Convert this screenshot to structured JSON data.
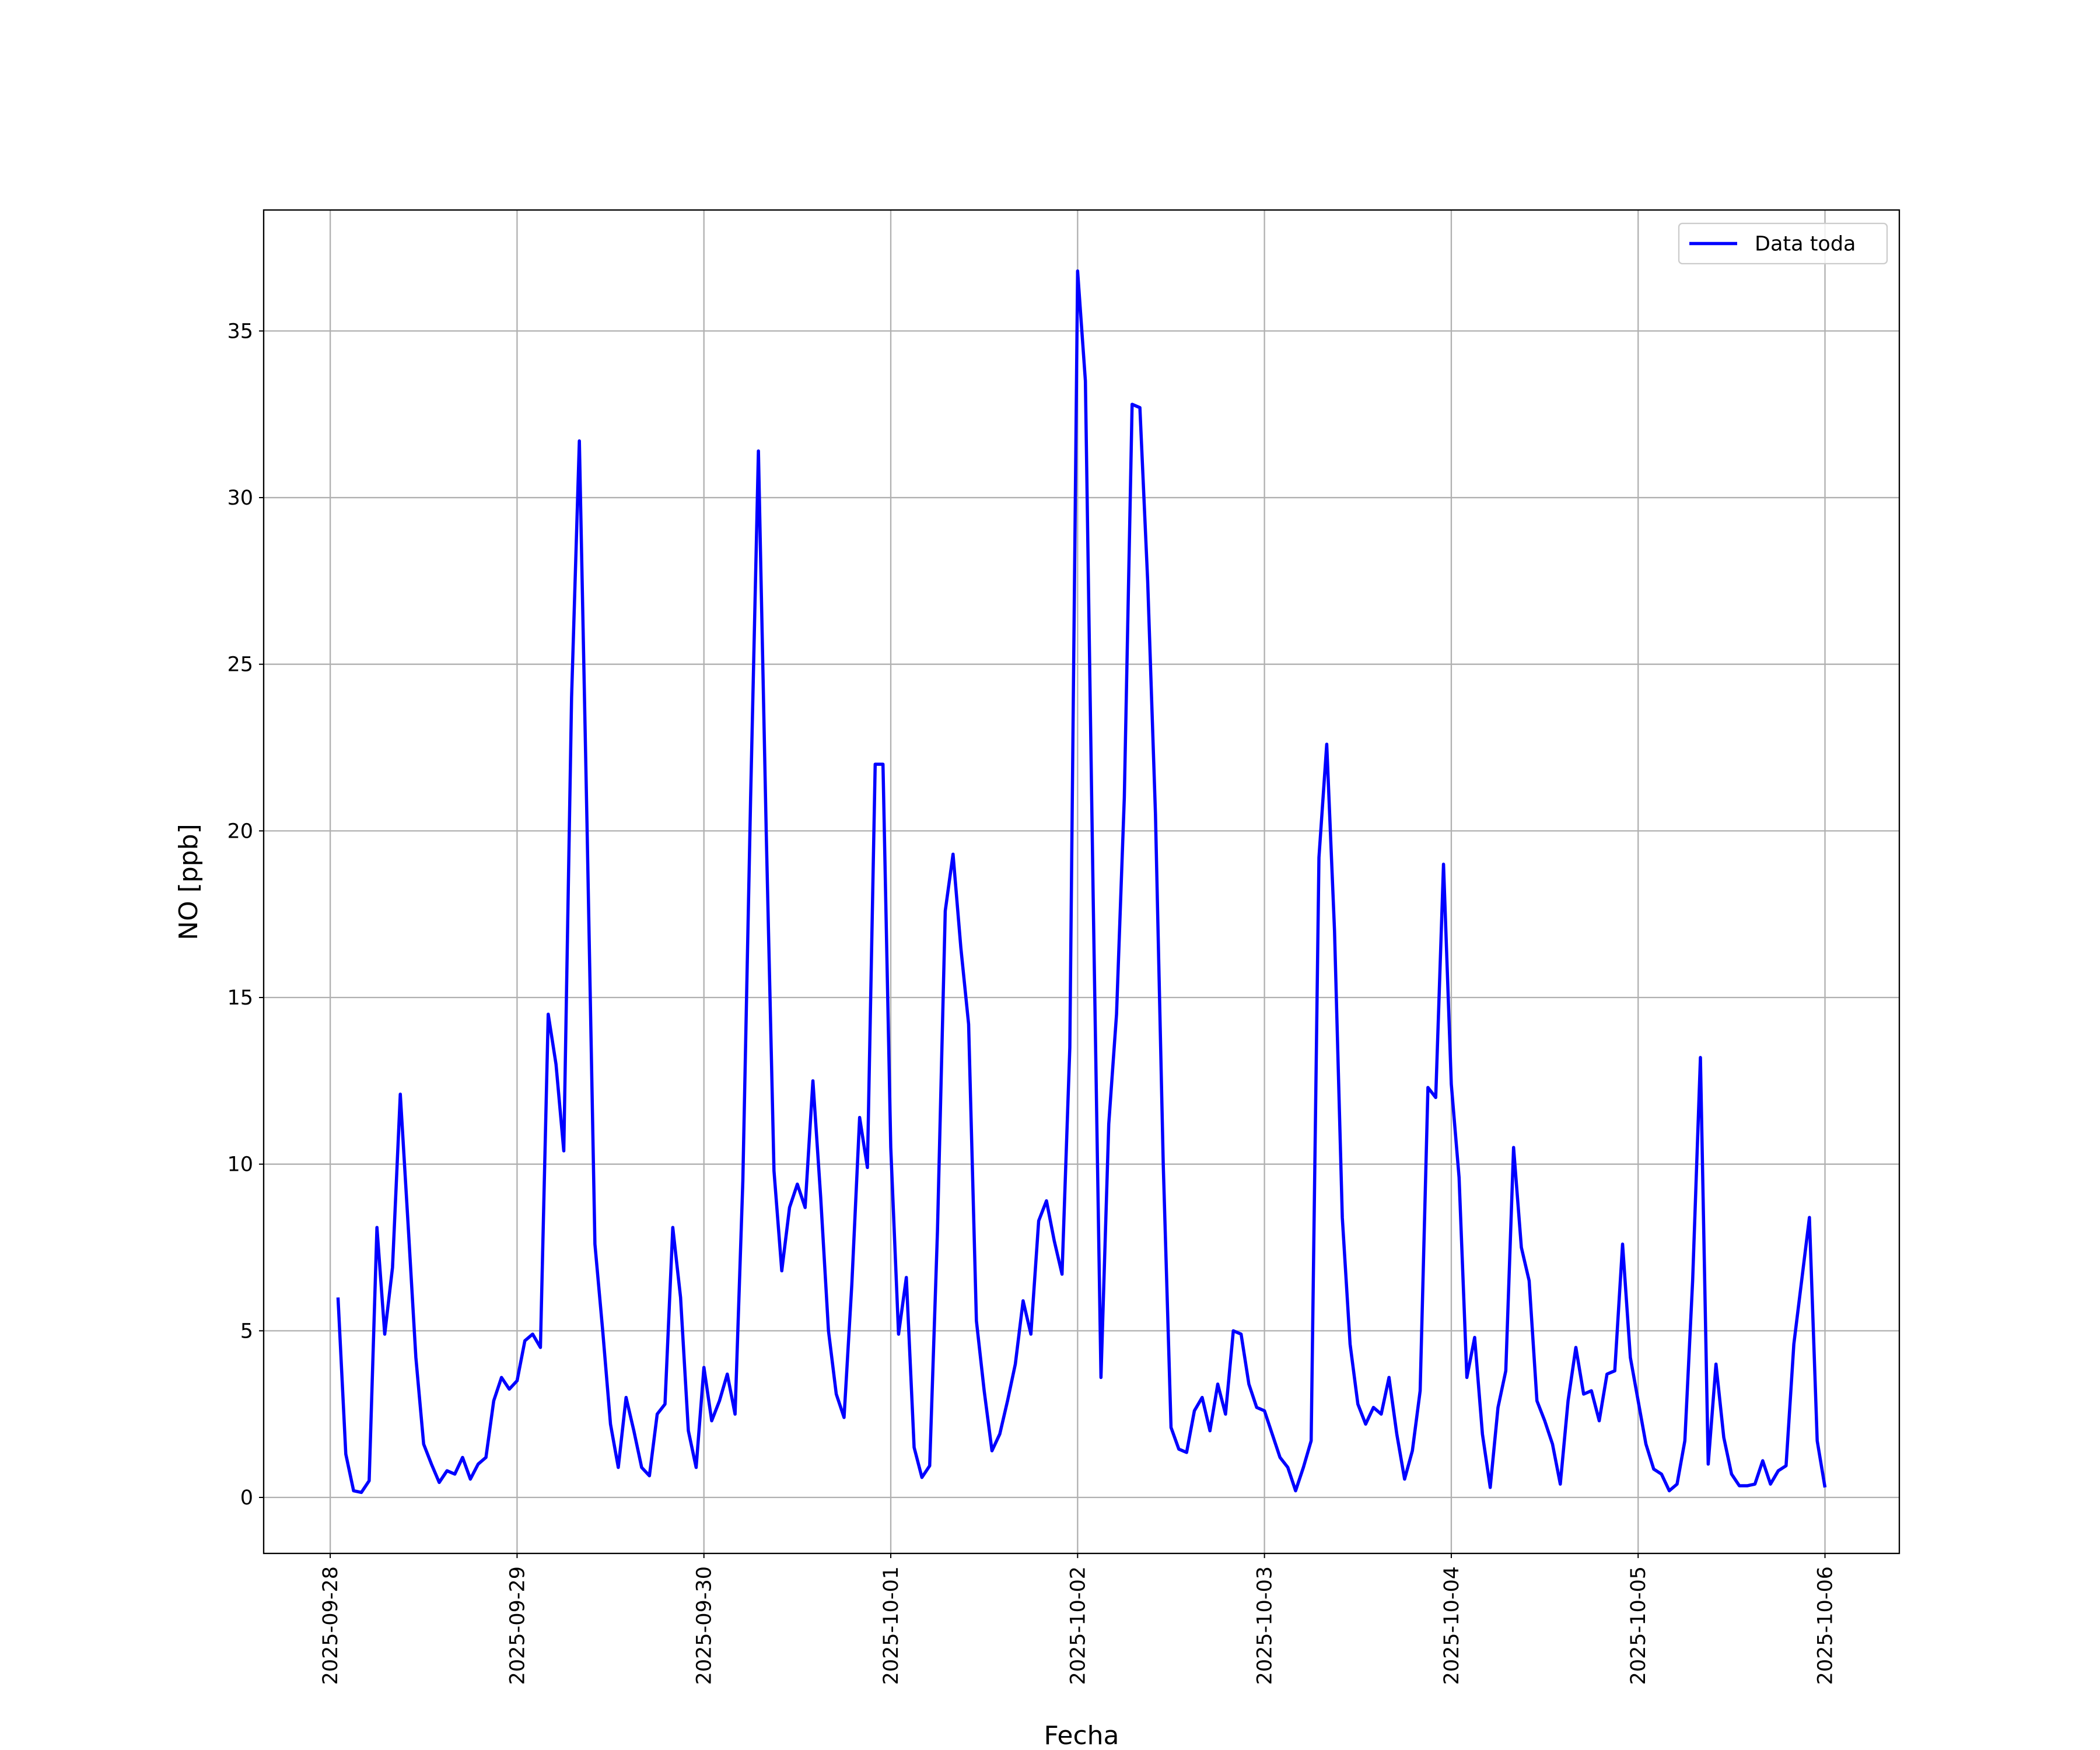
{
  "chart_data": {
    "type": "line",
    "xlabel": "Fecha",
    "ylabel": "NO [ppb]",
    "x": [
      "2025-09-28 01:00",
      "2025-09-28 02:00",
      "2025-09-28 03:00",
      "2025-09-28 04:00",
      "2025-09-28 05:00",
      "2025-09-28 06:00",
      "2025-09-28 07:00",
      "2025-09-28 08:00",
      "2025-09-28 09:00",
      "2025-09-28 10:00",
      "2025-09-28 11:00",
      "2025-09-28 12:00",
      "2025-09-28 13:00",
      "2025-09-28 14:00",
      "2025-09-28 15:00",
      "2025-09-28 16:00",
      "2025-09-28 17:00",
      "2025-09-28 18:00",
      "2025-09-28 19:00",
      "2025-09-28 20:00",
      "2025-09-28 21:00",
      "2025-09-28 22:00",
      "2025-09-28 23:00",
      "2025-09-29 00:00",
      "2025-09-29 01:00",
      "2025-09-29 02:00",
      "2025-09-29 03:00",
      "2025-09-29 04:00",
      "2025-09-29 05:00",
      "2025-09-29 06:00",
      "2025-09-29 07:00",
      "2025-09-29 08:00",
      "2025-09-29 09:00",
      "2025-09-29 10:00",
      "2025-09-29 11:00",
      "2025-09-29 12:00",
      "2025-09-29 13:00",
      "2025-09-29 14:00",
      "2025-09-29 15:00",
      "2025-09-29 16:00",
      "2025-09-29 17:00",
      "2025-09-29 18:00",
      "2025-09-29 19:00",
      "2025-09-29 20:00",
      "2025-09-29 21:00",
      "2025-09-29 22:00",
      "2025-09-29 23:00",
      "2025-09-30 00:00",
      "2025-09-30 01:00",
      "2025-09-30 02:00",
      "2025-09-30 03:00",
      "2025-09-30 04:00",
      "2025-09-30 05:00",
      "2025-09-30 06:00",
      "2025-09-30 07:00",
      "2025-09-30 08:00",
      "2025-09-30 09:00",
      "2025-09-30 10:00",
      "2025-09-30 11:00",
      "2025-09-30 12:00",
      "2025-09-30 13:00",
      "2025-09-30 14:00",
      "2025-09-30 15:00",
      "2025-09-30 16:00",
      "2025-09-30 17:00",
      "2025-09-30 18:00",
      "2025-09-30 19:00",
      "2025-09-30 20:00",
      "2025-09-30 21:00",
      "2025-09-30 22:00",
      "2025-09-30 23:00",
      "2025-10-01 00:00",
      "2025-10-01 01:00",
      "2025-10-01 02:00",
      "2025-10-01 03:00",
      "2025-10-01 04:00",
      "2025-10-01 05:00",
      "2025-10-01 06:00",
      "2025-10-01 07:00",
      "2025-10-01 08:00",
      "2025-10-01 09:00",
      "2025-10-01 10:00",
      "2025-10-01 11:00",
      "2025-10-01 12:00",
      "2025-10-01 13:00",
      "2025-10-01 14:00",
      "2025-10-01 15:00",
      "2025-10-01 16:00",
      "2025-10-01 17:00",
      "2025-10-01 18:00",
      "2025-10-01 19:00",
      "2025-10-01 20:00",
      "2025-10-01 21:00",
      "2025-10-01 22:00",
      "2025-10-01 23:00",
      "2025-10-02 00:00",
      "2025-10-02 01:00",
      "2025-10-02 02:00",
      "2025-10-02 03:00",
      "2025-10-02 04:00",
      "2025-10-02 05:00",
      "2025-10-02 06:00",
      "2025-10-02 07:00",
      "2025-10-02 08:00",
      "2025-10-02 09:00",
      "2025-10-02 10:00",
      "2025-10-02 11:00",
      "2025-10-02 12:00",
      "2025-10-02 13:00",
      "2025-10-02 14:00",
      "2025-10-02 15:00",
      "2025-10-02 16:00",
      "2025-10-02 17:00",
      "2025-10-02 18:00",
      "2025-10-02 19:00",
      "2025-10-02 20:00",
      "2025-10-02 21:00",
      "2025-10-02 22:00",
      "2025-10-02 23:00",
      "2025-10-03 00:00",
      "2025-10-03 01:00",
      "2025-10-03 02:00",
      "2025-10-03 03:00",
      "2025-10-03 04:00",
      "2025-10-03 05:00",
      "2025-10-03 06:00",
      "2025-10-03 07:00",
      "2025-10-03 08:00",
      "2025-10-03 09:00",
      "2025-10-03 10:00",
      "2025-10-03 11:00",
      "2025-10-03 12:00",
      "2025-10-03 13:00",
      "2025-10-03 14:00",
      "2025-10-03 15:00",
      "2025-10-03 16:00",
      "2025-10-03 17:00",
      "2025-10-03 18:00",
      "2025-10-03 19:00",
      "2025-10-03 20:00",
      "2025-10-03 21:00",
      "2025-10-03 22:00",
      "2025-10-03 23:00",
      "2025-10-04 00:00",
      "2025-10-04 01:00",
      "2025-10-04 02:00",
      "2025-10-04 03:00",
      "2025-10-04 04:00",
      "2025-10-04 05:00",
      "2025-10-04 06:00",
      "2025-10-04 07:00",
      "2025-10-04 08:00",
      "2025-10-04 09:00",
      "2025-10-04 10:00",
      "2025-10-04 11:00",
      "2025-10-04 12:00",
      "2025-10-04 13:00",
      "2025-10-04 14:00",
      "2025-10-04 15:00",
      "2025-10-04 16:00",
      "2025-10-04 17:00",
      "2025-10-04 18:00",
      "2025-10-04 19:00",
      "2025-10-04 20:00",
      "2025-10-04 21:00",
      "2025-10-04 22:00",
      "2025-10-04 23:00",
      "2025-10-05 00:00",
      "2025-10-05 01:00",
      "2025-10-05 02:00",
      "2025-10-05 03:00",
      "2025-10-05 04:00",
      "2025-10-05 05:00",
      "2025-10-05 06:00",
      "2025-10-05 07:00",
      "2025-10-05 08:00",
      "2025-10-05 09:00",
      "2025-10-05 10:00",
      "2025-10-05 11:00",
      "2025-10-05 12:00",
      "2025-10-05 13:00",
      "2025-10-05 14:00",
      "2025-10-05 15:00",
      "2025-10-05 16:00",
      "2025-10-05 17:00",
      "2025-10-05 18:00",
      "2025-10-05 19:00",
      "2025-10-05 20:00",
      "2025-10-05 21:00",
      "2025-10-05 22:00",
      "2025-10-05 23:00",
      "2025-10-06 00:00"
    ],
    "series": [
      {
        "name": "Data toda",
        "color": "#0000ff",
        "values": [
          6.0,
          1.3,
          0.2,
          0.15,
          0.5,
          8.1,
          4.9,
          6.9,
          12.1,
          8.2,
          4.2,
          1.6,
          1.0,
          0.45,
          0.8,
          0.7,
          1.2,
          0.55,
          1.0,
          1.2,
          2.9,
          3.6,
          3.25,
          3.5,
          4.7,
          4.9,
          4.5,
          14.5,
          13.0,
          10.4,
          24.0,
          31.7,
          20.0,
          7.6,
          5.0,
          2.2,
          0.9,
          3.0,
          2.0,
          0.9,
          0.65,
          2.5,
          2.8,
          8.1,
          6.0,
          2.0,
          0.9,
          3.9,
          2.3,
          2.9,
          3.7,
          2.5,
          9.5,
          21.0,
          31.4,
          20.0,
          9.8,
          6.8,
          8.7,
          9.4,
          8.7,
          12.5,
          9.0,
          5.0,
          3.1,
          2.4,
          6.4,
          11.4,
          9.9,
          22.0,
          22.0,
          10.5,
          4.9,
          6.6,
          1.5,
          0.6,
          0.95,
          8.0,
          17.6,
          19.3,
          16.5,
          14.2,
          5.3,
          3.2,
          1.4,
          1.9,
          2.9,
          4.0,
          5.9,
          4.9,
          8.3,
          8.9,
          7.7,
          6.7,
          13.5,
          36.8,
          33.5,
          18.0,
          3.6,
          11.2,
          14.5,
          21.0,
          32.8,
          32.7,
          27.5,
          20.5,
          10.0,
          2.1,
          1.45,
          1.35,
          2.6,
          3.0,
          2.0,
          3.4,
          2.5,
          5.0,
          4.9,
          3.4,
          2.7,
          2.6,
          1.9,
          1.2,
          0.9,
          0.2,
          0.9,
          1.7,
          19.2,
          22.6,
          17.0,
          8.4,
          4.6,
          2.8,
          2.2,
          2.7,
          2.5,
          3.6,
          1.9,
          0.55,
          1.4,
          3.2,
          12.3,
          12.0,
          19.0,
          12.4,
          9.6,
          3.6,
          4.8,
          1.9,
          0.3,
          2.7,
          3.8,
          10.5,
          7.5,
          6.5,
          2.9,
          2.3,
          1.6,
          0.4,
          2.9,
          4.5,
          3.1,
          3.2,
          2.3,
          3.7,
          3.8,
          7.6,
          4.2,
          2.9,
          1.6,
          0.85,
          0.7,
          0.2,
          0.4,
          1.7,
          6.5,
          13.2,
          1.0,
          4.0,
          1.8,
          0.7,
          0.35,
          0.35,
          0.4,
          1.1,
          0.4,
          0.8,
          0.95,
          4.6,
          6.5,
          8.4,
          1.7,
          0.3
        ]
      }
    ],
    "xlim": [
      "2025-09-27 15:27",
      "2025-10-06 09:33"
    ],
    "xticks": [
      "2025-09-28",
      "2025-09-29",
      "2025-09-30",
      "2025-10-01",
      "2025-10-02",
      "2025-10-03",
      "2025-10-04",
      "2025-10-05",
      "2025-10-06"
    ],
    "ylim": [
      -1.68,
      38.63
    ],
    "yticks": [
      0,
      5,
      10,
      15,
      20,
      25,
      30,
      35
    ],
    "grid": true,
    "legend": "upper right"
  }
}
